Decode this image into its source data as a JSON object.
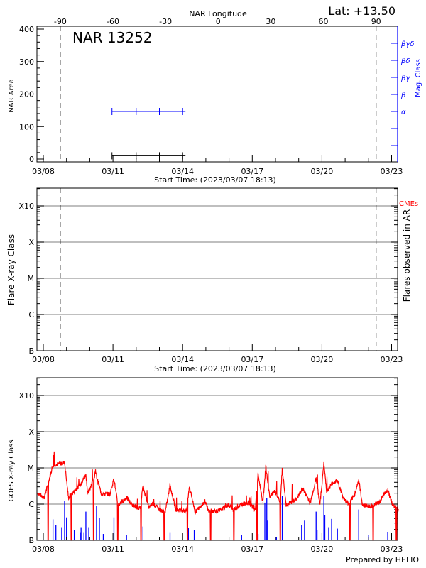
{
  "chart_data": [
    {
      "type": "line",
      "panel": "nar",
      "title": "NAR 13252",
      "lat_label": "Lat: +13.50",
      "top_axis_label": "NAR Longitude",
      "top_ticks": [
        "-90",
        "-60",
        "-30",
        "0",
        "30",
        "60",
        "90"
      ],
      "top_tick_values": [
        -90,
        -60,
        -30,
        0,
        30,
        60,
        90
      ],
      "ylabel": "NAR Area",
      "ylim": [
        0,
        400
      ],
      "yticks": [
        "0",
        "100",
        "200",
        "300",
        "400"
      ],
      "right_label": "Mag. Class",
      "right_ticks": [
        "α",
        "β",
        "βγ",
        "βδ",
        "βγδ"
      ],
      "xlabel": "Start Time: (2023/03/07 18:13)",
      "xticks": [
        "03/08",
        "03/11",
        "03/14",
        "03/17",
        "03/20",
        "03/23"
      ],
      "limb_lines": [
        "03/08 17:30",
        "03/22 08:00"
      ],
      "series": [
        {
          "color": "#000000",
          "x": [
            "03/10 23:00",
            "03/12 00:00",
            "03/13 00:00",
            "03/14 00:00"
          ],
          "area": [
            10,
            10,
            10,
            10
          ]
        },
        {
          "color": "#0000ff",
          "x": [
            "03/10 23:00",
            "03/12 00:00",
            "03/13 00:00",
            "03/14 00:00"
          ],
          "mag_class": [
            "α",
            "α",
            "α",
            "α"
          ]
        }
      ]
    },
    {
      "type": "scatter",
      "panel": "flares",
      "ylabel": "Flare X-ray Class",
      "yticks": [
        "B",
        "C",
        "M",
        "X",
        "X10"
      ],
      "right_label": "Flares observed in AR",
      "cme_label": "CMEs",
      "cme_color": "#ff0000",
      "xlabel": "Start Time: (2023/03/07 18:13)",
      "xticks": [
        "03/08",
        "03/11",
        "03/14",
        "03/17",
        "03/20",
        "03/23"
      ],
      "limb_lines": [
        "03/08 17:30",
        "03/22 08:00"
      ],
      "grid": true,
      "flares": []
    },
    {
      "type": "line",
      "panel": "goes",
      "ylabel": "GOES X-ray Class",
      "yticks": [
        "B",
        "C",
        "M",
        "X",
        "X10"
      ],
      "xticks": [
        "03/08",
        "03/11",
        "03/14",
        "03/17",
        "03/20",
        "03/23"
      ],
      "grid": true,
      "footer": "Prepared by HELIO",
      "series": [
        {
          "color": "#ff0000",
          "x": [
            "03/07 18:13",
            "03/08 01:00",
            "03/08 10:00",
            "03/08 22:00",
            "03/09 02:00",
            "03/09 14:00",
            "03/09 20:00",
            "03/09 22:00",
            "03/10 06:00",
            "03/10 12:00",
            "03/10 21:00",
            "03/11 01:00",
            "03/11 05:00",
            "03/11 14:00",
            "03/11 20:00",
            "03/12 04:00",
            "03/12 07:00",
            "03/12 13:00",
            "03/12 18:00",
            "03/13 00:00",
            "03/13 06:00",
            "03/13 11:00",
            "03/13 17:00",
            "03/14 04:00",
            "03/14 07:00",
            "03/14 13:00",
            "03/14 23:00",
            "03/15 03:00",
            "03/15 14:00",
            "03/15 23:00",
            "03/16 05:00",
            "03/16 13:00",
            "03/16 20:00",
            "03/17 03:00",
            "03/17 06:00",
            "03/17 11:00",
            "03/17 14:00",
            "03/17 18:00",
            "03/17 23:00",
            "03/18 05:00",
            "03/18 07:00",
            "03/18 11:00",
            "03/18 22:00",
            "03/19 04:00",
            "03/19 12:00",
            "03/19 18:00",
            "03/19 22:00",
            "03/20 02:00",
            "03/20 05:00",
            "03/20 11:00",
            "03/20 16:00",
            "03/20 22:00",
            "03/21 04:00",
            "03/21 10:00",
            "03/21 14:00",
            "03/21 18:00",
            "03/22 03:00",
            "03/22 11:00",
            "03/22 20:00",
            "03/23 01:00",
            "03/23 07:00"
          ],
          "y": [
            "C2.0",
            "C1.5",
            "M1.2",
            "M1.4",
            "C1.5",
            "C3.4",
            "C6.5",
            "C1.9",
            "C7.4",
            "C1.9",
            "C1.9",
            "C5.1",
            "B9.4",
            "C1.5",
            "B9.4",
            "B7.5",
            "C3.1",
            "B8.1",
            "C1.0",
            "B7.0",
            "B6.0",
            "C3.2",
            "B7.0",
            "B6.5",
            "C3.1",
            "B6.0",
            "C1.2",
            "B6.5",
            "B6.5",
            "B9.4",
            "B7.0",
            "C1.0",
            "C1.1",
            "B7.0",
            "C6.6",
            "C1.1",
            "M1.1",
            "C1.6",
            "C2.2",
            "C1.1",
            "C9.7",
            "B9.4",
            "C1.4",
            "C2.7",
            "C1.1",
            "C5.1",
            "C1.0",
            "M1.3",
            "C2.2",
            "C3.9",
            "C4.4",
            "C1.5",
            "C1.0",
            "C1.9",
            "C4.7",
            "B9.4",
            "B8.7",
            "C1.1",
            "C2.6",
            "B9.4",
            "B7.0"
          ],
          "data_gaps": [
            "03/08 05:00",
            "03/09 05:00",
            "03/10 04:00",
            "03/11 05:00",
            "03/12 05:00",
            "03/13 05:00",
            "03/14 05:00",
            "03/15 05:00",
            "03/16 05:00",
            "03/17 05:00",
            "03/18 05:00",
            "03/21 05:00",
            "03/22 05:00",
            "03/23 05:00"
          ]
        },
        {
          "color": "#0000ff",
          "type": "bar",
          "x": [
            "03/08 10:00",
            "03/08 13:00",
            "03/08 19:00",
            "03/08 22:00",
            "03/09 00:00",
            "03/09 08:00",
            "03/09 14:00",
            "03/09 15:00",
            "03/09 18:00",
            "03/09 20:00",
            "03/09 23:00",
            "03/10 07:00",
            "03/10 10:00",
            "03/10 14:00",
            "03/11 01:00",
            "03/11 14:00",
            "03/12 07:00",
            "03/13 11:00",
            "03/14 06:00",
            "03/14 12:00",
            "03/16 13:00",
            "03/17 06:00",
            "03/17 13:00",
            "03/17 15:00",
            "03/17 16:00",
            "03/18 01:00",
            "03/18 07:00",
            "03/19 03:00",
            "03/19 06:00",
            "03/19 18:00",
            "03/19 19:00",
            "03/20 02:00",
            "03/20 03:00",
            "03/20 07:00",
            "03/20 10:00",
            "03/20 16:00",
            "03/21 14:00",
            "03/22 00:00",
            "03/22 20:00"
          ],
          "y": [
            "B3.8",
            "B2.6",
            "B2.3",
            "C1.2",
            "B4.3",
            "B1.9",
            "B1.6",
            "B2.3",
            "B1.6",
            "B6.2",
            "B2.3",
            "B9.0",
            "B4.1",
            "B1.5",
            "B4.3",
            "B1.4",
            "B2.4",
            "B1.6",
            "B2.2",
            "B1.9",
            "B1.4",
            "B1.5",
            "C1.1",
            "C1.5",
            "B3.5",
            "B1.2",
            "C1.7",
            "B2.6",
            "B3.5",
            "B6.2",
            "B1.9",
            "C1.7",
            "B4.9",
            "B2.3",
            "B3.9",
            "B2.1",
            "B7.1",
            "B1.4",
            "B1.7"
          ]
        }
      ]
    }
  ]
}
